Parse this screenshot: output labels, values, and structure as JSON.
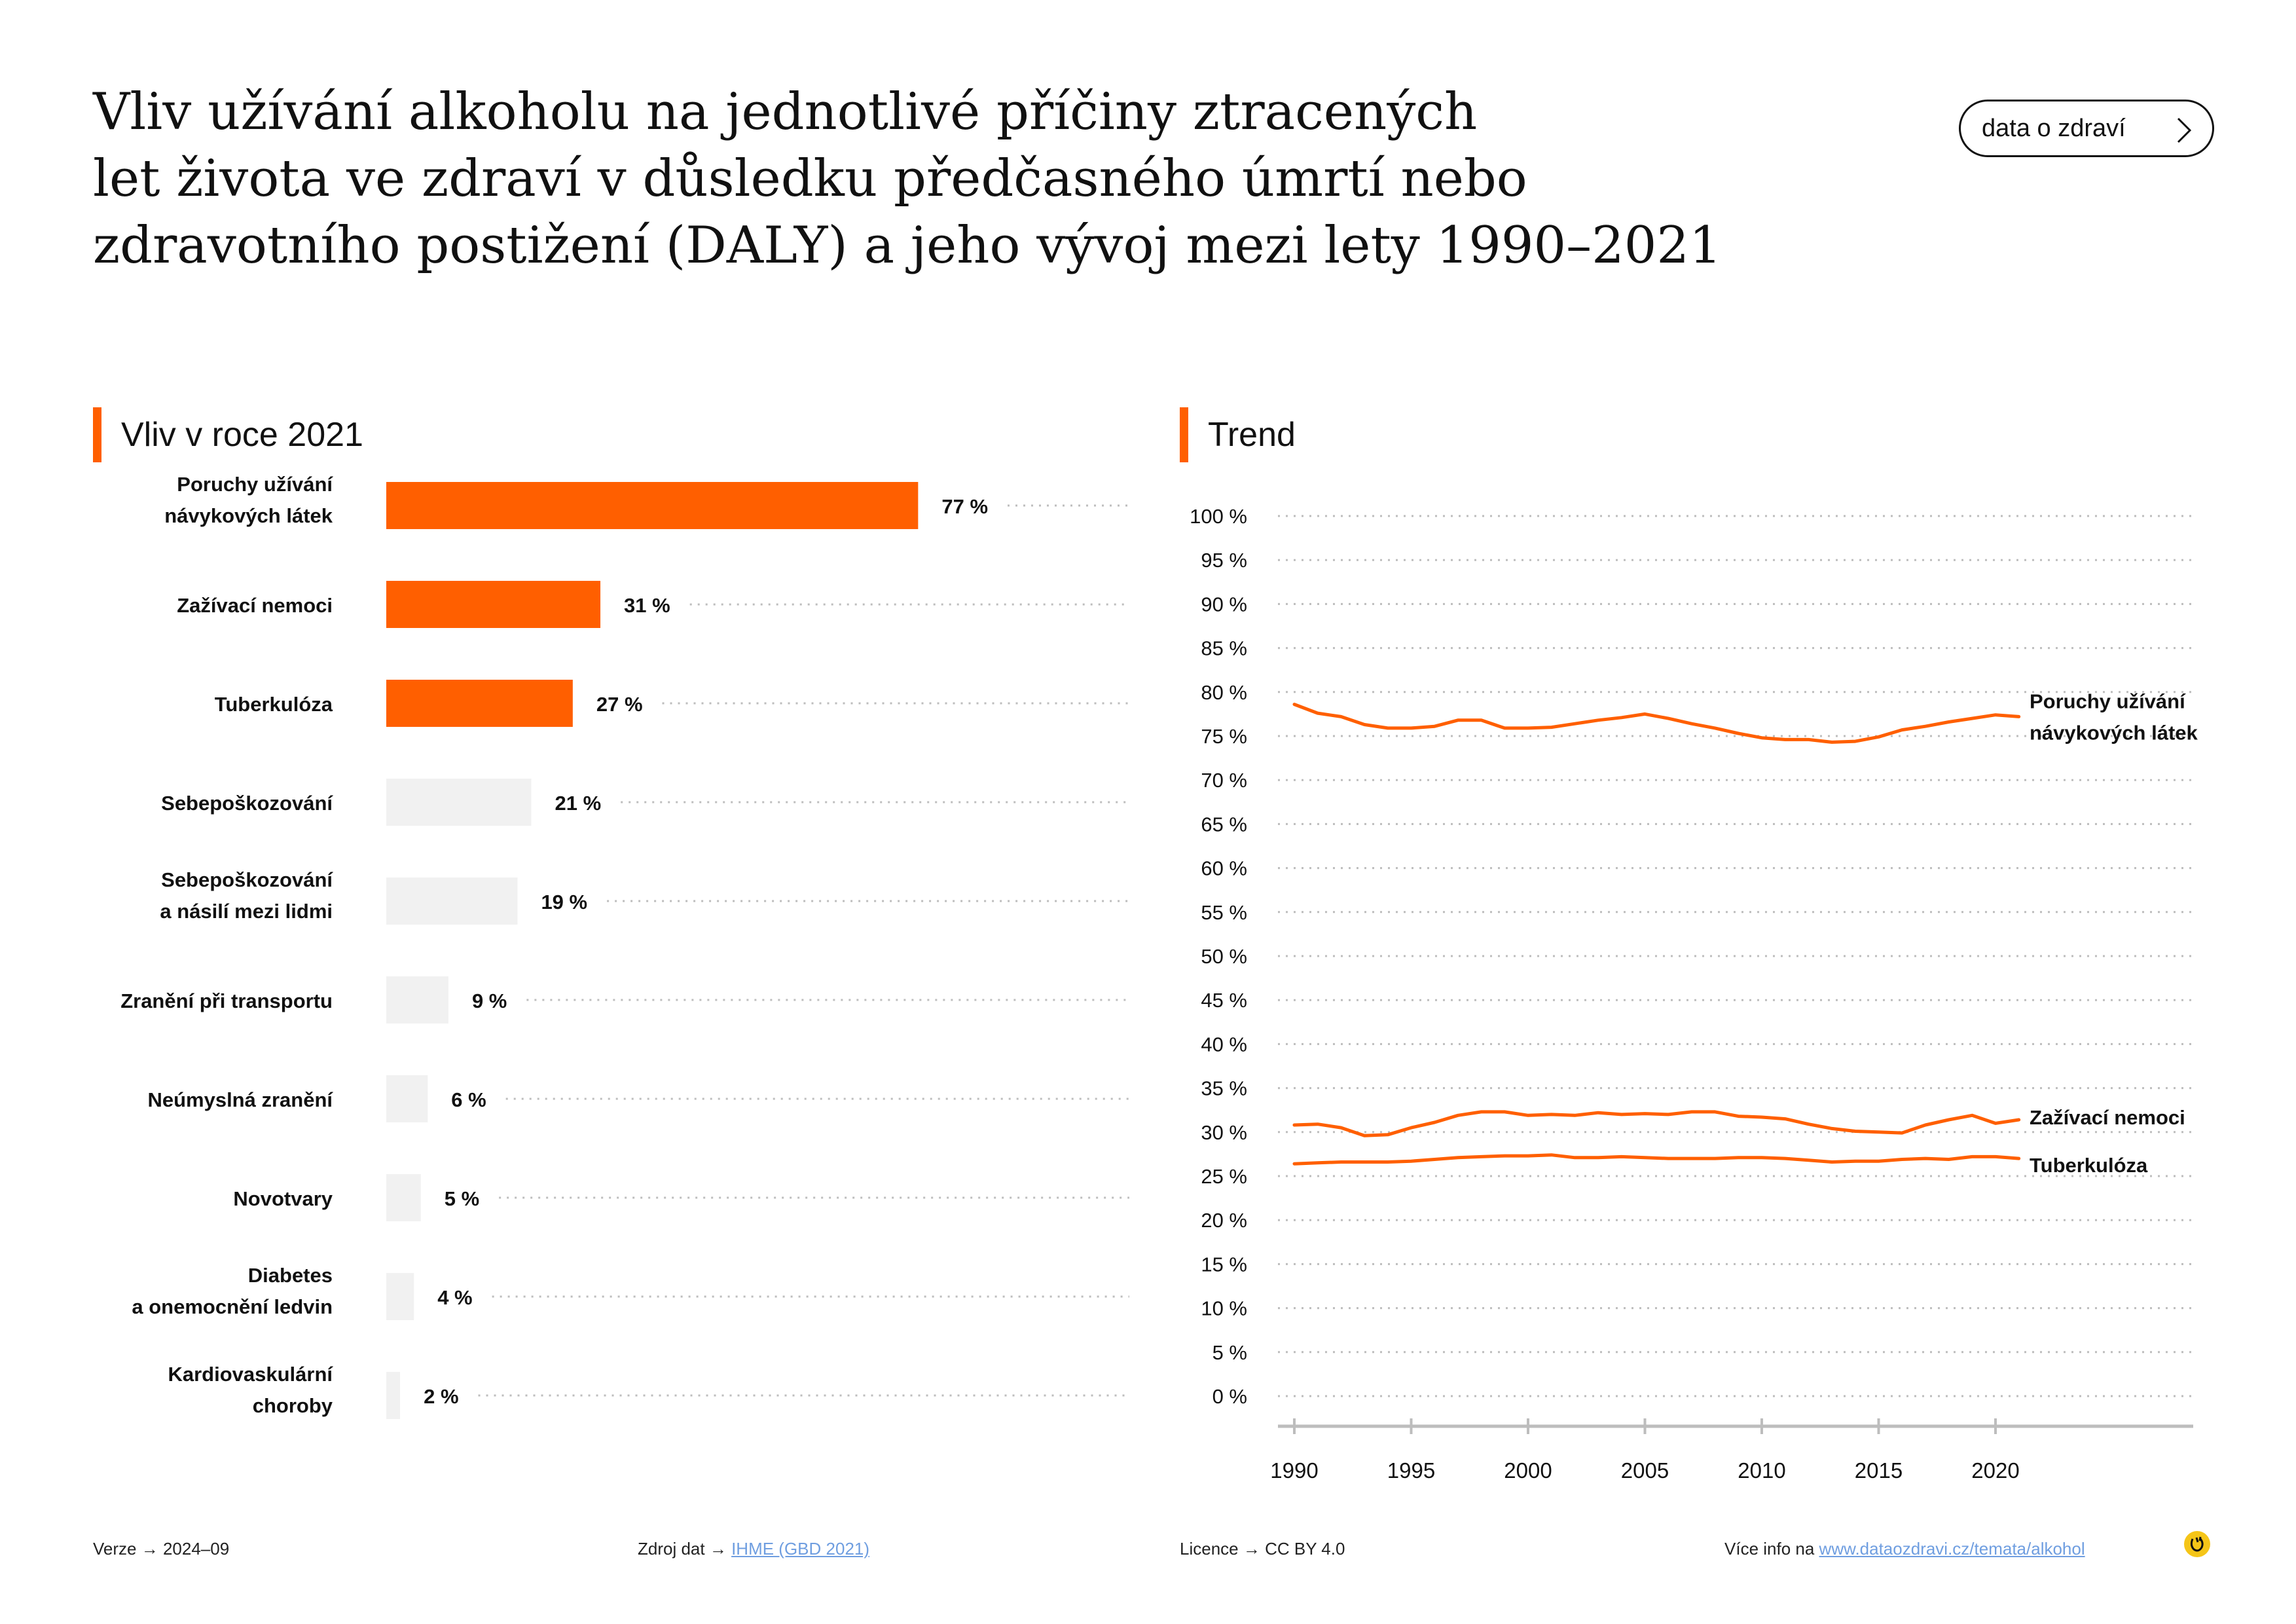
{
  "title_lines": [
    "Vliv užívání alkoholu na jednotlivé příčiny ztracených",
    "let života ve zdraví v důsledku předčasného úmrtí nebo",
    "zdravotního postižení (DALY) a jeho vývoj mezi lety 1990–2021"
  ],
  "pill_button": {
    "label": "data o zdraví",
    "icon": "chevron-right-icon"
  },
  "colors": {
    "accent": "#ff5f00",
    "muted_bar": "#f1f1f1",
    "grid": "#bdbdbd",
    "text": "#111111",
    "link": "#6f9ee0",
    "logo": "#f5c518"
  },
  "sections": {
    "left_title": "Vliv v roce 2021",
    "right_title": "Trend"
  },
  "chart_data": [
    {
      "type": "bar",
      "orientation": "horizontal",
      "title": "Vliv v roce 2021",
      "unit": "%",
      "categories": [
        [
          "Poruchy užívání",
          "návykových látek"
        ],
        [
          "Zažívací nemoci"
        ],
        [
          "Tuberkulóza"
        ],
        [
          "Sebepoškozování"
        ],
        [
          "Sebepoškozování",
          "a násilí mezi lidmi"
        ],
        [
          "Zranění při transportu"
        ],
        [
          "Neúmyslná zranění"
        ],
        [
          "Novotvary"
        ],
        [
          "Diabetes",
          "a onemocnění ledvin"
        ],
        [
          "Kardiovaskulární",
          "choroby"
        ]
      ],
      "values": [
        77,
        31,
        27,
        21,
        19,
        9,
        6,
        5,
        4,
        2
      ],
      "value_labels": [
        "77 %",
        "31 %",
        "27 %",
        "21 %",
        "19 %",
        "9 %",
        "6 %",
        "5 %",
        "4 %",
        "2 %"
      ],
      "highlighted": [
        true,
        true,
        true,
        false,
        false,
        false,
        false,
        false,
        false,
        false
      ],
      "xlim": [
        0,
        100
      ]
    },
    {
      "type": "line",
      "title": "Trend",
      "x": [
        1990,
        1991,
        1992,
        1993,
        1994,
        1995,
        1996,
        1997,
        1998,
        1999,
        2000,
        2001,
        2002,
        2003,
        2004,
        2005,
        2006,
        2007,
        2008,
        2009,
        2010,
        2011,
        2012,
        2013,
        2014,
        2015,
        2016,
        2017,
        2018,
        2019,
        2020,
        2021
      ],
      "x_ticks": [
        1990,
        1995,
        2000,
        2005,
        2010,
        2015,
        2020
      ],
      "x_tick_labels": [
        "1990",
        "1995",
        "2000",
        "2005",
        "2010",
        "2015",
        "2020"
      ],
      "ylim": [
        0,
        100
      ],
      "y_ticks": [
        0,
        5,
        10,
        15,
        20,
        25,
        30,
        35,
        40,
        45,
        50,
        55,
        60,
        65,
        70,
        75,
        80,
        85,
        90,
        95,
        100
      ],
      "y_tick_labels": [
        "0 %",
        "5 %",
        "10 %",
        "15 %",
        "20 %",
        "25 %",
        "30 %",
        "35 %",
        "40 %",
        "45 %",
        "50 %",
        "55 %",
        "60 %",
        "65 %",
        "70 %",
        "75 %",
        "80 %",
        "85 %",
        "90 %",
        "95 %",
        "100 %"
      ],
      "grid": true,
      "series": [
        {
          "name": [
            "Poruchy užívání",
            "návykových látek"
          ],
          "values": [
            78.6,
            77.6,
            77.2,
            76.3,
            75.9,
            75.9,
            76.1,
            76.8,
            76.8,
            75.9,
            75.9,
            76.0,
            76.4,
            76.8,
            77.1,
            77.5,
            77.0,
            76.4,
            75.9,
            75.3,
            74.8,
            74.6,
            74.6,
            74.3,
            74.4,
            74.9,
            75.7,
            76.1,
            76.6,
            77.0,
            77.4,
            77.2
          ]
        },
        {
          "name": [
            "Zažívací nemoci"
          ],
          "values": [
            30.8,
            30.9,
            30.5,
            29.6,
            29.7,
            30.5,
            31.1,
            31.9,
            32.3,
            32.3,
            31.9,
            32.0,
            31.9,
            32.2,
            32.0,
            32.1,
            32.0,
            32.3,
            32.3,
            31.8,
            31.7,
            31.5,
            30.9,
            30.4,
            30.1,
            30.0,
            29.9,
            30.8,
            31.4,
            31.9,
            31.0,
            31.4
          ]
        },
        {
          "name": [
            "Tuberkulóza"
          ],
          "values": [
            26.4,
            26.5,
            26.6,
            26.6,
            26.6,
            26.7,
            26.9,
            27.1,
            27.2,
            27.3,
            27.3,
            27.4,
            27.1,
            27.1,
            27.2,
            27.1,
            27.0,
            27.0,
            27.0,
            27.1,
            27.1,
            27.0,
            26.8,
            26.6,
            26.7,
            26.7,
            26.9,
            27.0,
            26.9,
            27.2,
            27.2,
            27.0
          ]
        }
      ]
    }
  ],
  "footer": {
    "version_label": "Verze",
    "version_value": "2024–09",
    "source_label": "Zdroj dat",
    "source_link": "IHME (GBD 2021)",
    "license_label": "Licence",
    "license_value": "CC BY 4.0",
    "more_info_label": "Více info na",
    "more_info_link": "www.dataozdravi.cz/temata/alkohol",
    "arrow": "→"
  },
  "logo_icon": "dataozdravi-logo-icon"
}
